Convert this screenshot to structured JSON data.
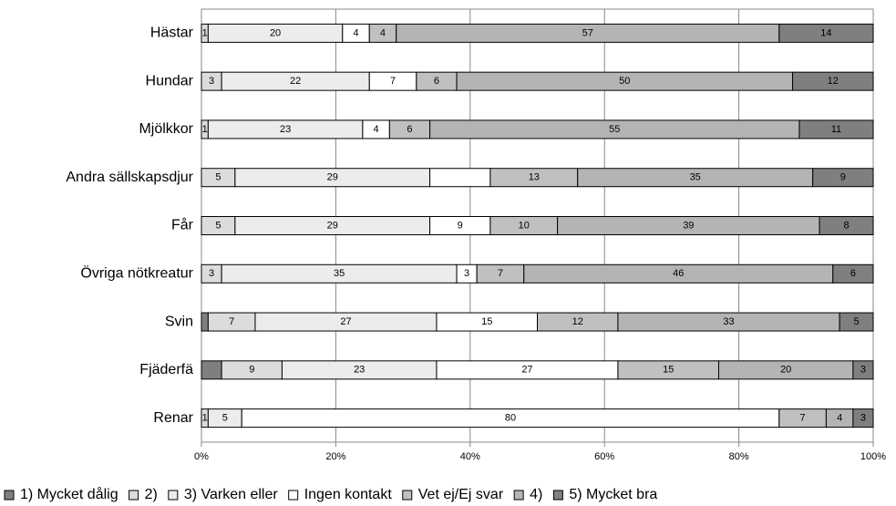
{
  "chart_data": {
    "type": "stacked_barh",
    "categories": [
      "Hästar",
      "Hundar",
      "Mjölkkor",
      "Andra sällskapsdjur",
      "Får",
      "Övriga nötkreatur",
      "Svin",
      "Fjäderfä",
      "Renar"
    ],
    "series": [
      {
        "name": "1) Mycket dålig",
        "color": "#7f7f7f",
        "values": [
          0,
          0,
          0,
          0,
          0,
          0,
          1,
          3,
          0
        ],
        "value_labels": [
          null,
          null,
          null,
          null,
          null,
          null,
          null,
          null,
          null
        ]
      },
      {
        "name": "2)",
        "color": "#dcdcdc",
        "values": [
          1,
          3,
          1,
          5,
          5,
          3,
          7,
          9,
          1
        ],
        "value_labels": [
          "1",
          "3",
          "1",
          "5",
          "5",
          "3",
          "7",
          "9",
          "1"
        ]
      },
      {
        "name": "3) Varken eller",
        "color": "#ececec",
        "values": [
          20,
          22,
          23,
          29,
          29,
          35,
          27,
          23,
          5
        ],
        "value_labels": [
          "20",
          "22",
          "23",
          "29",
          "29",
          "35",
          "27",
          "23",
          "5"
        ]
      },
      {
        "name": "Ingen kontakt",
        "color": "#ffffff",
        "values": [
          4,
          7,
          4,
          9,
          9,
          3,
          15,
          27,
          80
        ],
        "value_labels": [
          "4",
          "7",
          "4",
          null,
          "9",
          "3",
          "15",
          "27",
          "80"
        ]
      },
      {
        "name": "Vet ej/Ej svar",
        "color": "#c0c0c0",
        "values": [
          4,
          6,
          6,
          13,
          10,
          7,
          12,
          15,
          7
        ],
        "value_labels": [
          "4",
          "6",
          "6",
          "13",
          "10",
          "7",
          "12",
          "15",
          "7"
        ]
      },
      {
        "name": "4)",
        "color": "#b4b4b4",
        "values": [
          57,
          50,
          55,
          35,
          39,
          46,
          33,
          20,
          4
        ],
        "value_labels": [
          "57",
          "50",
          "55",
          "35",
          "39",
          "46",
          "33",
          "20",
          "4"
        ]
      },
      {
        "name": "5) Mycket bra",
        "color": "#7f7f7f",
        "values": [
          14,
          12,
          11,
          9,
          8,
          6,
          5,
          3,
          3
        ],
        "value_labels": [
          "14",
          "12",
          "11",
          "9",
          "8",
          "6",
          "5",
          "3",
          "3"
        ]
      }
    ],
    "xlim": [
      0,
      100
    ],
    "xticks": [
      {
        "value": 0,
        "label": "0%"
      },
      {
        "value": 20,
        "label": "20%"
      },
      {
        "value": 40,
        "label": "40%"
      },
      {
        "value": 60,
        "label": "60%"
      },
      {
        "value": 80,
        "label": "80%"
      },
      {
        "value": 100,
        "label": "100%"
      }
    ],
    "grid": true,
    "legend": "bottom"
  }
}
